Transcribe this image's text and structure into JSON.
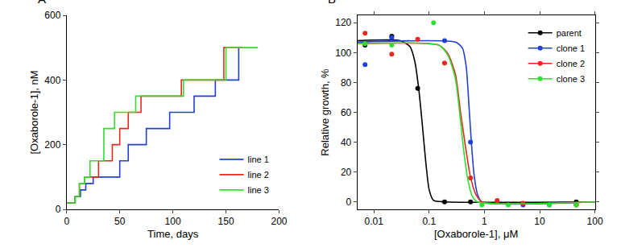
{
  "chart_data": [
    {
      "type": "step",
      "label": "A",
      "x_label": "Time, days",
      "y_label": "[Oxaborole-1], nM",
      "xlim": [
        0,
        200
      ],
      "xticks": [
        0,
        50,
        100,
        150,
        200
      ],
      "ylim": [
        0,
        600
      ],
      "yticks": [
        0,
        200,
        400,
        600
      ],
      "grid": false,
      "legend": "lower right",
      "series": [
        {
          "name": "line 1",
          "color": "#1f3fd6",
          "x": [
            0,
            8,
            13,
            18,
            25,
            50,
            58,
            75,
            97,
            120,
            140,
            162,
            165
          ],
          "values": [
            20,
            40,
            60,
            80,
            100,
            150,
            200,
            250,
            300,
            350,
            400,
            500,
            500
          ]
        },
        {
          "name": "line 2",
          "color": "#e8281e",
          "x": [
            0,
            8,
            12,
            17,
            22,
            30,
            43,
            50,
            58,
            70,
            108,
            148,
            165
          ],
          "values": [
            20,
            40,
            80,
            100,
            100,
            150,
            200,
            250,
            300,
            350,
            400,
            500,
            500
          ]
        },
        {
          "name": "line 3",
          "color": "#2ee02e",
          "x": [
            0,
            8,
            12,
            17,
            22,
            28,
            35,
            45,
            65,
            110,
            150,
            180
          ],
          "values": [
            20,
            40,
            80,
            100,
            150,
            150,
            250,
            300,
            350,
            400,
            500,
            500
          ]
        }
      ]
    },
    {
      "type": "scatter",
      "label": "B",
      "x_label": "[Oxaborole-1], μM",
      "y_label": "Relative growth, %",
      "log": "x",
      "xlim": [
        0.005,
        100
      ],
      "xticks": [
        0.01,
        0.1,
        1,
        10,
        100
      ],
      "ylim": [
        -5,
        125
      ],
      "yticks": [
        0,
        20,
        40,
        60,
        80,
        100,
        120
      ],
      "grid": false,
      "legend": "upper right",
      "marker": "circle",
      "series": [
        {
          "name": "parent",
          "color": "#000000",
          "x": [
            0.0069,
            0.021,
            0.062,
            0.19,
            0.56,
            46
          ],
          "values": [
            105,
            111,
            76,
            0,
            0,
            0
          ],
          "fit": {
            "x": [
              0.005,
              0.03,
              0.045,
              0.055,
              0.065,
              0.075,
              0.085,
              0.1,
              0.12,
              0.2,
              100
            ],
            "values": [
              108,
              108,
              104,
              94,
              75,
              52,
              30,
              8,
              1,
              0,
              0
            ]
          }
        },
        {
          "name": "clone 1",
          "color": "#1f3fd6",
          "x": [
            0.0069,
            0.021,
            0.19,
            0.56,
            1.7,
            5,
            15,
            46
          ],
          "values": [
            92,
            110,
            108,
            40,
            0,
            -2,
            -2,
            -2
          ],
          "fit": {
            "x": [
              0.005,
              0.3,
              0.4,
              0.47,
              0.53,
              0.58,
              0.65,
              0.75,
              0.9,
              100
            ],
            "values": [
              107,
              107,
              103,
              90,
              62,
              40,
              18,
              5,
              0,
              0
            ]
          }
        },
        {
          "name": "clone 2",
          "color": "#e8281e",
          "x": [
            0.0069,
            0.021,
            0.062,
            0.19,
            0.56,
            1.7,
            5,
            46
          ],
          "values": [
            113,
            99,
            109,
            93,
            16,
            1,
            -1,
            -2
          ],
          "fit": {
            "x": [
              0.005,
              0.15,
              0.22,
              0.3,
              0.37,
              0.45,
              0.55,
              0.7,
              0.9,
              100
            ],
            "values": [
              106,
              105,
              99,
              85,
              60,
              38,
              18,
              5,
              0,
              0
            ]
          }
        },
        {
          "name": "clone 3",
          "color": "#2ee02e",
          "x": [
            0.0069,
            0.021,
            0.12,
            0.9,
            2.7,
            15,
            46
          ],
          "values": [
            106,
            105,
            120,
            -2,
            -2,
            -2,
            -2
          ],
          "fit": {
            "x": [
              0.005,
              0.15,
              0.22,
              0.3,
              0.36,
              0.42,
              0.5,
              0.6,
              0.75,
              100
            ],
            "values": [
              106,
              105,
              98,
              82,
              58,
              35,
              15,
              4,
              0,
              0
            ]
          }
        }
      ]
    }
  ]
}
